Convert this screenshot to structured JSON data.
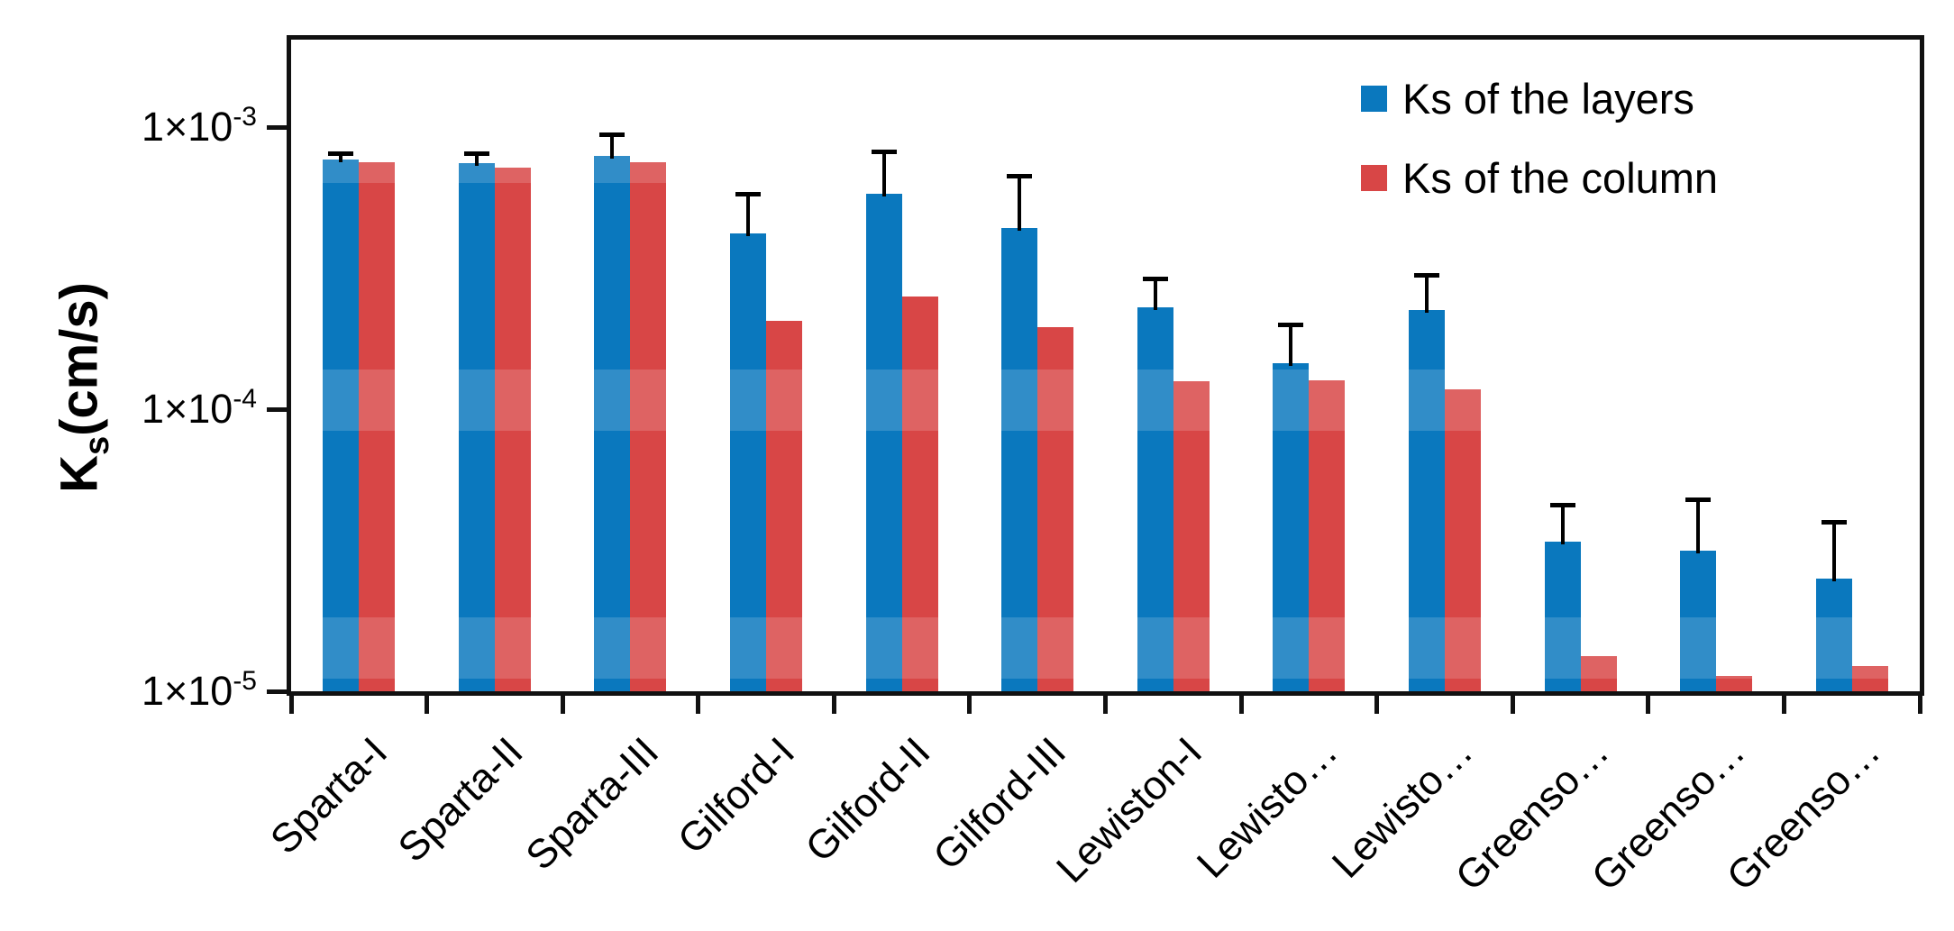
{
  "chart_data": {
    "type": "bar",
    "title": "",
    "ylabel": {
      "base": "K",
      "sub": "s",
      "rest": "(cm/s)"
    },
    "x_categories": [
      "Sparta-I",
      "Sparta-II",
      "Sparta-III",
      "Gilford-I",
      "Gilford-II",
      "Gilford-III",
      "Lewiston-I",
      "Lewisto…",
      "Lewisto…",
      "Greenso…",
      "Greenso…",
      "Greenso…"
    ],
    "y_axis": {
      "scale": "log",
      "unit": "cm/s",
      "min": 1e-05,
      "max": 0.002,
      "ticks": [
        {
          "mantissa": "1×10",
          "exponent": "-3",
          "value": 0.001
        },
        {
          "mantissa": "1×10",
          "exponent": "-4",
          "value": 0.0001
        },
        {
          "mantissa": "1×10",
          "exponent": "-5",
          "value": 1e-05
        }
      ]
    },
    "series": [
      {
        "name": "Ks of the layers",
        "color": "#0a78be",
        "values": [
          0.00077,
          0.000745,
          0.00079,
          0.00042,
          0.00058,
          0.00044,
          0.00023,
          0.000145,
          0.000225,
          3.4e-05,
          3.15e-05,
          2.5e-05
        ],
        "error_upper": [
          0.00081,
          0.00081,
          0.00094,
          0.00058,
          0.00082,
          0.00067,
          0.00029,
          0.0002,
          0.0003,
          4.6e-05,
          4.8e-05,
          4e-05
        ]
      },
      {
        "name": "Ks of the column",
        "color": "#d84646",
        "values": [
          0.00075,
          0.00072,
          0.00075,
          0.000205,
          0.00025,
          0.000195,
          0.000126,
          0.000127,
          0.000118,
          1.33e-05,
          1.13e-05,
          1.23e-05
        ]
      }
    ],
    "legend": {
      "position": "top-right",
      "items": [
        "Ks of the layers",
        "Ks of the column"
      ]
    },
    "grid": false,
    "error_bar_color": "#000000",
    "frame_color": "#111111",
    "background_color": "#ffffff"
  }
}
